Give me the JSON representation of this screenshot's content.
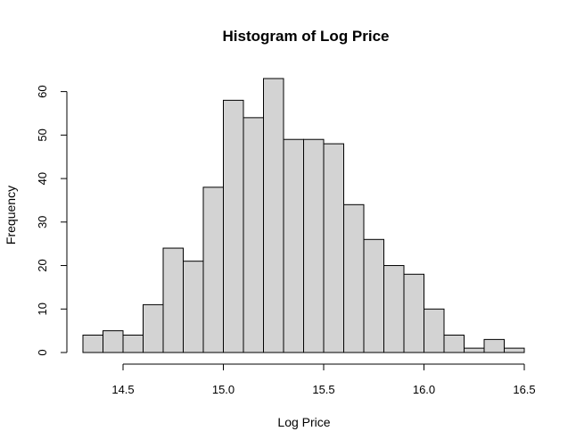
{
  "chart_data": {
    "type": "bar",
    "title": "Histogram of Log Price",
    "xlabel": "Log Price",
    "ylabel": "Frequency",
    "bin_width": 0.1,
    "bin_start": 14.3,
    "values": [
      4,
      5,
      4,
      11,
      24,
      21,
      38,
      58,
      54,
      63,
      49,
      49,
      48,
      34,
      26,
      20,
      18,
      10,
      4,
      1,
      3,
      1
    ],
    "xlim": [
      14.3,
      16.5
    ],
    "ylim": [
      0,
      63
    ],
    "x_ticks": [
      "14.5",
      "15.0",
      "15.5",
      "16.0",
      "16.5"
    ],
    "y_ticks": [
      "0",
      "10",
      "20",
      "30",
      "40",
      "50",
      "60"
    ],
    "colors": {
      "bar_fill": "#d3d3d3",
      "bar_stroke": "#000000"
    },
    "grid": false,
    "legend": "none"
  }
}
